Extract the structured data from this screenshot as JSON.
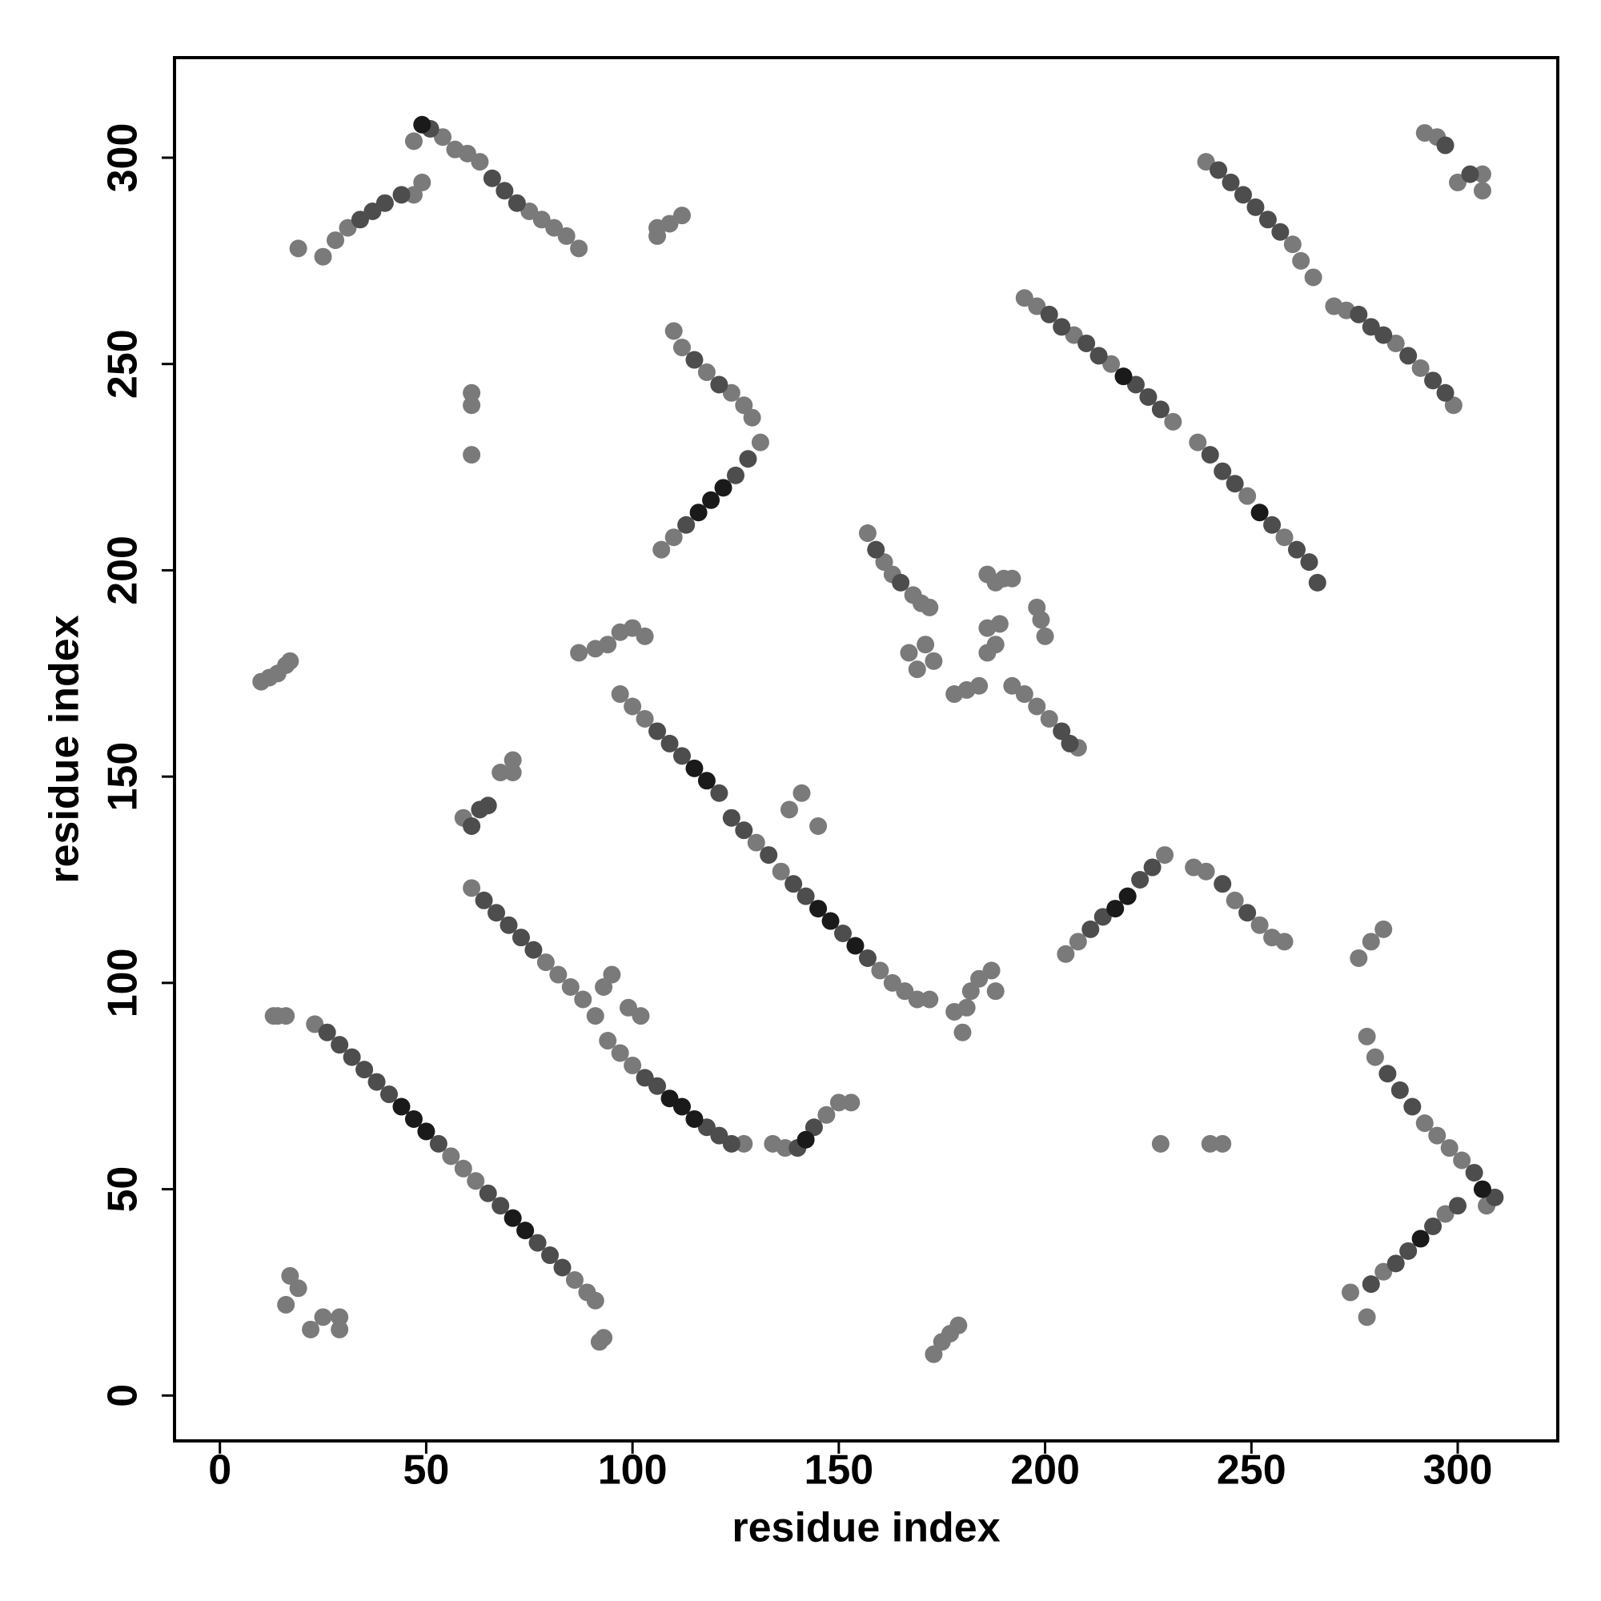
{
  "chart_data": {
    "type": "scatter",
    "xlabel": "residue index",
    "ylabel": "residue index",
    "xlim": [
      -11,
      324.25
    ],
    "ylim": [
      -11,
      324.25
    ],
    "xticks": [
      0,
      50,
      100,
      150,
      200,
      250,
      300
    ],
    "yticks": [
      0,
      50,
      100,
      150,
      200,
      250,
      300
    ],
    "series": [
      {
        "color": "#7a7a7a",
        "x": [
          23,
          56,
          59,
          62,
          86,
          89,
          91,
          19,
          25,
          28,
          31,
          47,
          54,
          57,
          60,
          63,
          75,
          78,
          81,
          84,
          87,
          47,
          49,
          97,
          100,
          103,
          130,
          136,
          160,
          163,
          166,
          169,
          172,
          141,
          145,
          138,
          61,
          79,
          82,
          85,
          88,
          91,
          94,
          97,
          100,
          127,
          93,
          95,
          99,
          102,
          134,
          137,
          147,
          150,
          153,
          107,
          110,
          131,
          110,
          112,
          118,
          124,
          127,
          129,
          157,
          161,
          163,
          168,
          170,
          172,
          167,
          169,
          171,
          173,
          178,
          181,
          184,
          186,
          188,
          186,
          189,
          190,
          188,
          192,
          186,
          198,
          199,
          200,
          192,
          195,
          198,
          201,
          208,
          195,
          198,
          207,
          216,
          231,
          237,
          249,
          258,
          239,
          260,
          262,
          265,
          270,
          273,
          285,
          291,
          299,
          292,
          295,
          300,
          306,
          306,
          205,
          208,
          229,
          236,
          239,
          246,
          252,
          255,
          258,
          278,
          280,
          292,
          295,
          298,
          301,
          307,
          297,
          282,
          274,
          278,
          93,
          92,
          17,
          19,
          22,
          25,
          29,
          29,
          16,
          14,
          13,
          16,
          106,
          109,
          112,
          106,
          61,
          61,
          61,
          10,
          12,
          14,
          16,
          17,
          87,
          91,
          94,
          97,
          100,
          103,
          59,
          68,
          71,
          71,
          173,
          175,
          177,
          179,
          180,
          181,
          182,
          184,
          187,
          188,
          178,
          228,
          240,
          243,
          282,
          279,
          276
        ],
        "y": [
          90,
          58,
          55,
          52,
          28,
          25,
          23,
          278,
          276,
          280,
          283,
          304,
          305,
          302,
          301,
          299,
          287,
          285,
          283,
          281,
          278,
          291,
          294,
          170,
          167,
          164,
          134,
          127,
          103,
          100,
          98,
          96,
          96,
          146,
          138,
          142,
          123,
          105,
          102,
          99,
          96,
          92,
          86,
          83,
          80,
          61,
          99,
          102,
          94,
          92,
          61,
          60,
          68,
          71,
          71,
          205,
          208,
          231,
          258,
          254,
          248,
          243,
          240,
          237,
          209,
          202,
          199,
          194,
          192,
          191,
          180,
          176,
          182,
          178,
          170,
          171,
          172,
          180,
          182,
          186,
          187,
          198,
          197,
          198,
          199,
          191,
          188,
          184,
          172,
          170,
          167,
          164,
          157,
          266,
          264,
          257,
          250,
          236,
          231,
          218,
          208,
          299,
          279,
          275,
          271,
          264,
          263,
          255,
          249,
          240,
          306,
          305,
          294,
          296,
          292,
          107,
          110,
          131,
          128,
          127,
          120,
          114,
          111,
          110,
          87,
          82,
          66,
          63,
          60,
          57,
          46,
          44,
          30,
          25,
          19,
          14,
          13,
          29,
          26,
          16,
          19,
          19,
          16,
          22,
          92,
          92,
          92,
          283,
          284,
          286,
          281,
          243,
          240,
          228,
          173,
          174,
          175,
          177,
          178,
          180,
          181,
          182,
          185,
          186,
          184,
          140,
          151,
          154,
          151,
          10,
          13,
          15,
          17,
          88,
          94,
          98,
          101,
          103,
          98,
          93,
          61,
          61,
          61,
          113,
          110,
          106
        ]
      },
      {
        "color": "#4d4d4d",
        "x": [
          32,
          35,
          38,
          41,
          53,
          65,
          68,
          77,
          80,
          83,
          34,
          37,
          40,
          44,
          51,
          66,
          69,
          72,
          106,
          109,
          112,
          121,
          124,
          127,
          133,
          139,
          142,
          151,
          157,
          64,
          67,
          70,
          73,
          76,
          103,
          106,
          118,
          121,
          124,
          113,
          125,
          128,
          115,
          121,
          159,
          165,
          204,
          206,
          201,
          204,
          210,
          213,
          222,
          225,
          228,
          240,
          243,
          246,
          255,
          261,
          264,
          266,
          242,
          245,
          248,
          251,
          254,
          257,
          276,
          279,
          282,
          288,
          294,
          297,
          303,
          297,
          211,
          214,
          223,
          226,
          243,
          249,
          283,
          286,
          289,
          304,
          309,
          294,
          288,
          285,
          300,
          279,
          61,
          63,
          65,
          140,
          144,
          29,
          26
        ],
        "y": [
          82,
          79,
          76,
          73,
          61,
          49,
          46,
          37,
          34,
          31,
          285,
          287,
          289,
          291,
          307,
          295,
          292,
          289,
          161,
          158,
          155,
          146,
          140,
          137,
          131,
          124,
          121,
          112,
          106,
          120,
          117,
          114,
          111,
          108,
          77,
          75,
          65,
          63,
          61,
          211,
          223,
          227,
          251,
          245,
          205,
          197,
          161,
          158,
          262,
          259,
          255,
          252,
          245,
          242,
          239,
          228,
          224,
          221,
          211,
          205,
          202,
          197,
          297,
          294,
          291,
          288,
          285,
          282,
          262,
          259,
          257,
          252,
          246,
          243,
          296,
          303,
          113,
          116,
          125,
          128,
          124,
          117,
          78,
          74,
          70,
          54,
          48,
          41,
          35,
          32,
          46,
          27,
          138,
          142,
          143,
          60,
          65,
          85,
          88
        ]
      },
      {
        "color": "#1a1a1a",
        "x": [
          44,
          47,
          50,
          71,
          74,
          115,
          118,
          145,
          148,
          154,
          109,
          112,
          115,
          116,
          119,
          122,
          217,
          220,
          252,
          306,
          291,
          49,
          142,
          219
        ],
        "y": [
          70,
          67,
          64,
          43,
          40,
          152,
          149,
          118,
          115,
          109,
          72,
          70,
          67,
          214,
          217,
          220,
          118,
          121,
          214,
          50,
          38,
          308,
          62,
          247
        ]
      }
    ]
  }
}
